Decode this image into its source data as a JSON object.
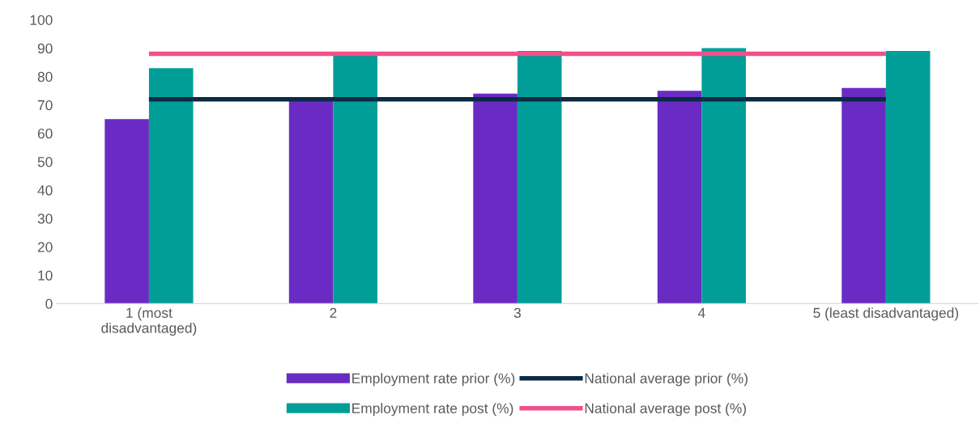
{
  "chart_data": {
    "type": "bar",
    "categories": [
      "1 (most\ndisadvantaged)",
      "2",
      "3",
      "4",
      "5 (least disadvantaged)"
    ],
    "series": [
      {
        "name": "Employment rate prior (%)",
        "color": "#6a2bc4",
        "values": [
          65,
          72,
          74,
          75,
          76
        ]
      },
      {
        "name": "Employment rate post (%)",
        "color": "#009e96",
        "values": [
          83,
          88,
          89,
          90,
          89
        ]
      },
      {
        "name": "National average prior (%)",
        "type": "line",
        "color": "#0b2a45",
        "values": [
          72,
          72,
          72,
          72,
          72
        ]
      },
      {
        "name": "National average post (%)",
        "type": "line",
        "color": "#f0508c",
        "values": [
          88,
          88,
          88,
          88,
          88
        ]
      }
    ],
    "ylim": [
      0,
      100
    ],
    "yticks": [
      0,
      10,
      20,
      30,
      40,
      50,
      60,
      70,
      80,
      90,
      100
    ],
    "grid": false,
    "legend": "bottom",
    "marker": "none"
  }
}
